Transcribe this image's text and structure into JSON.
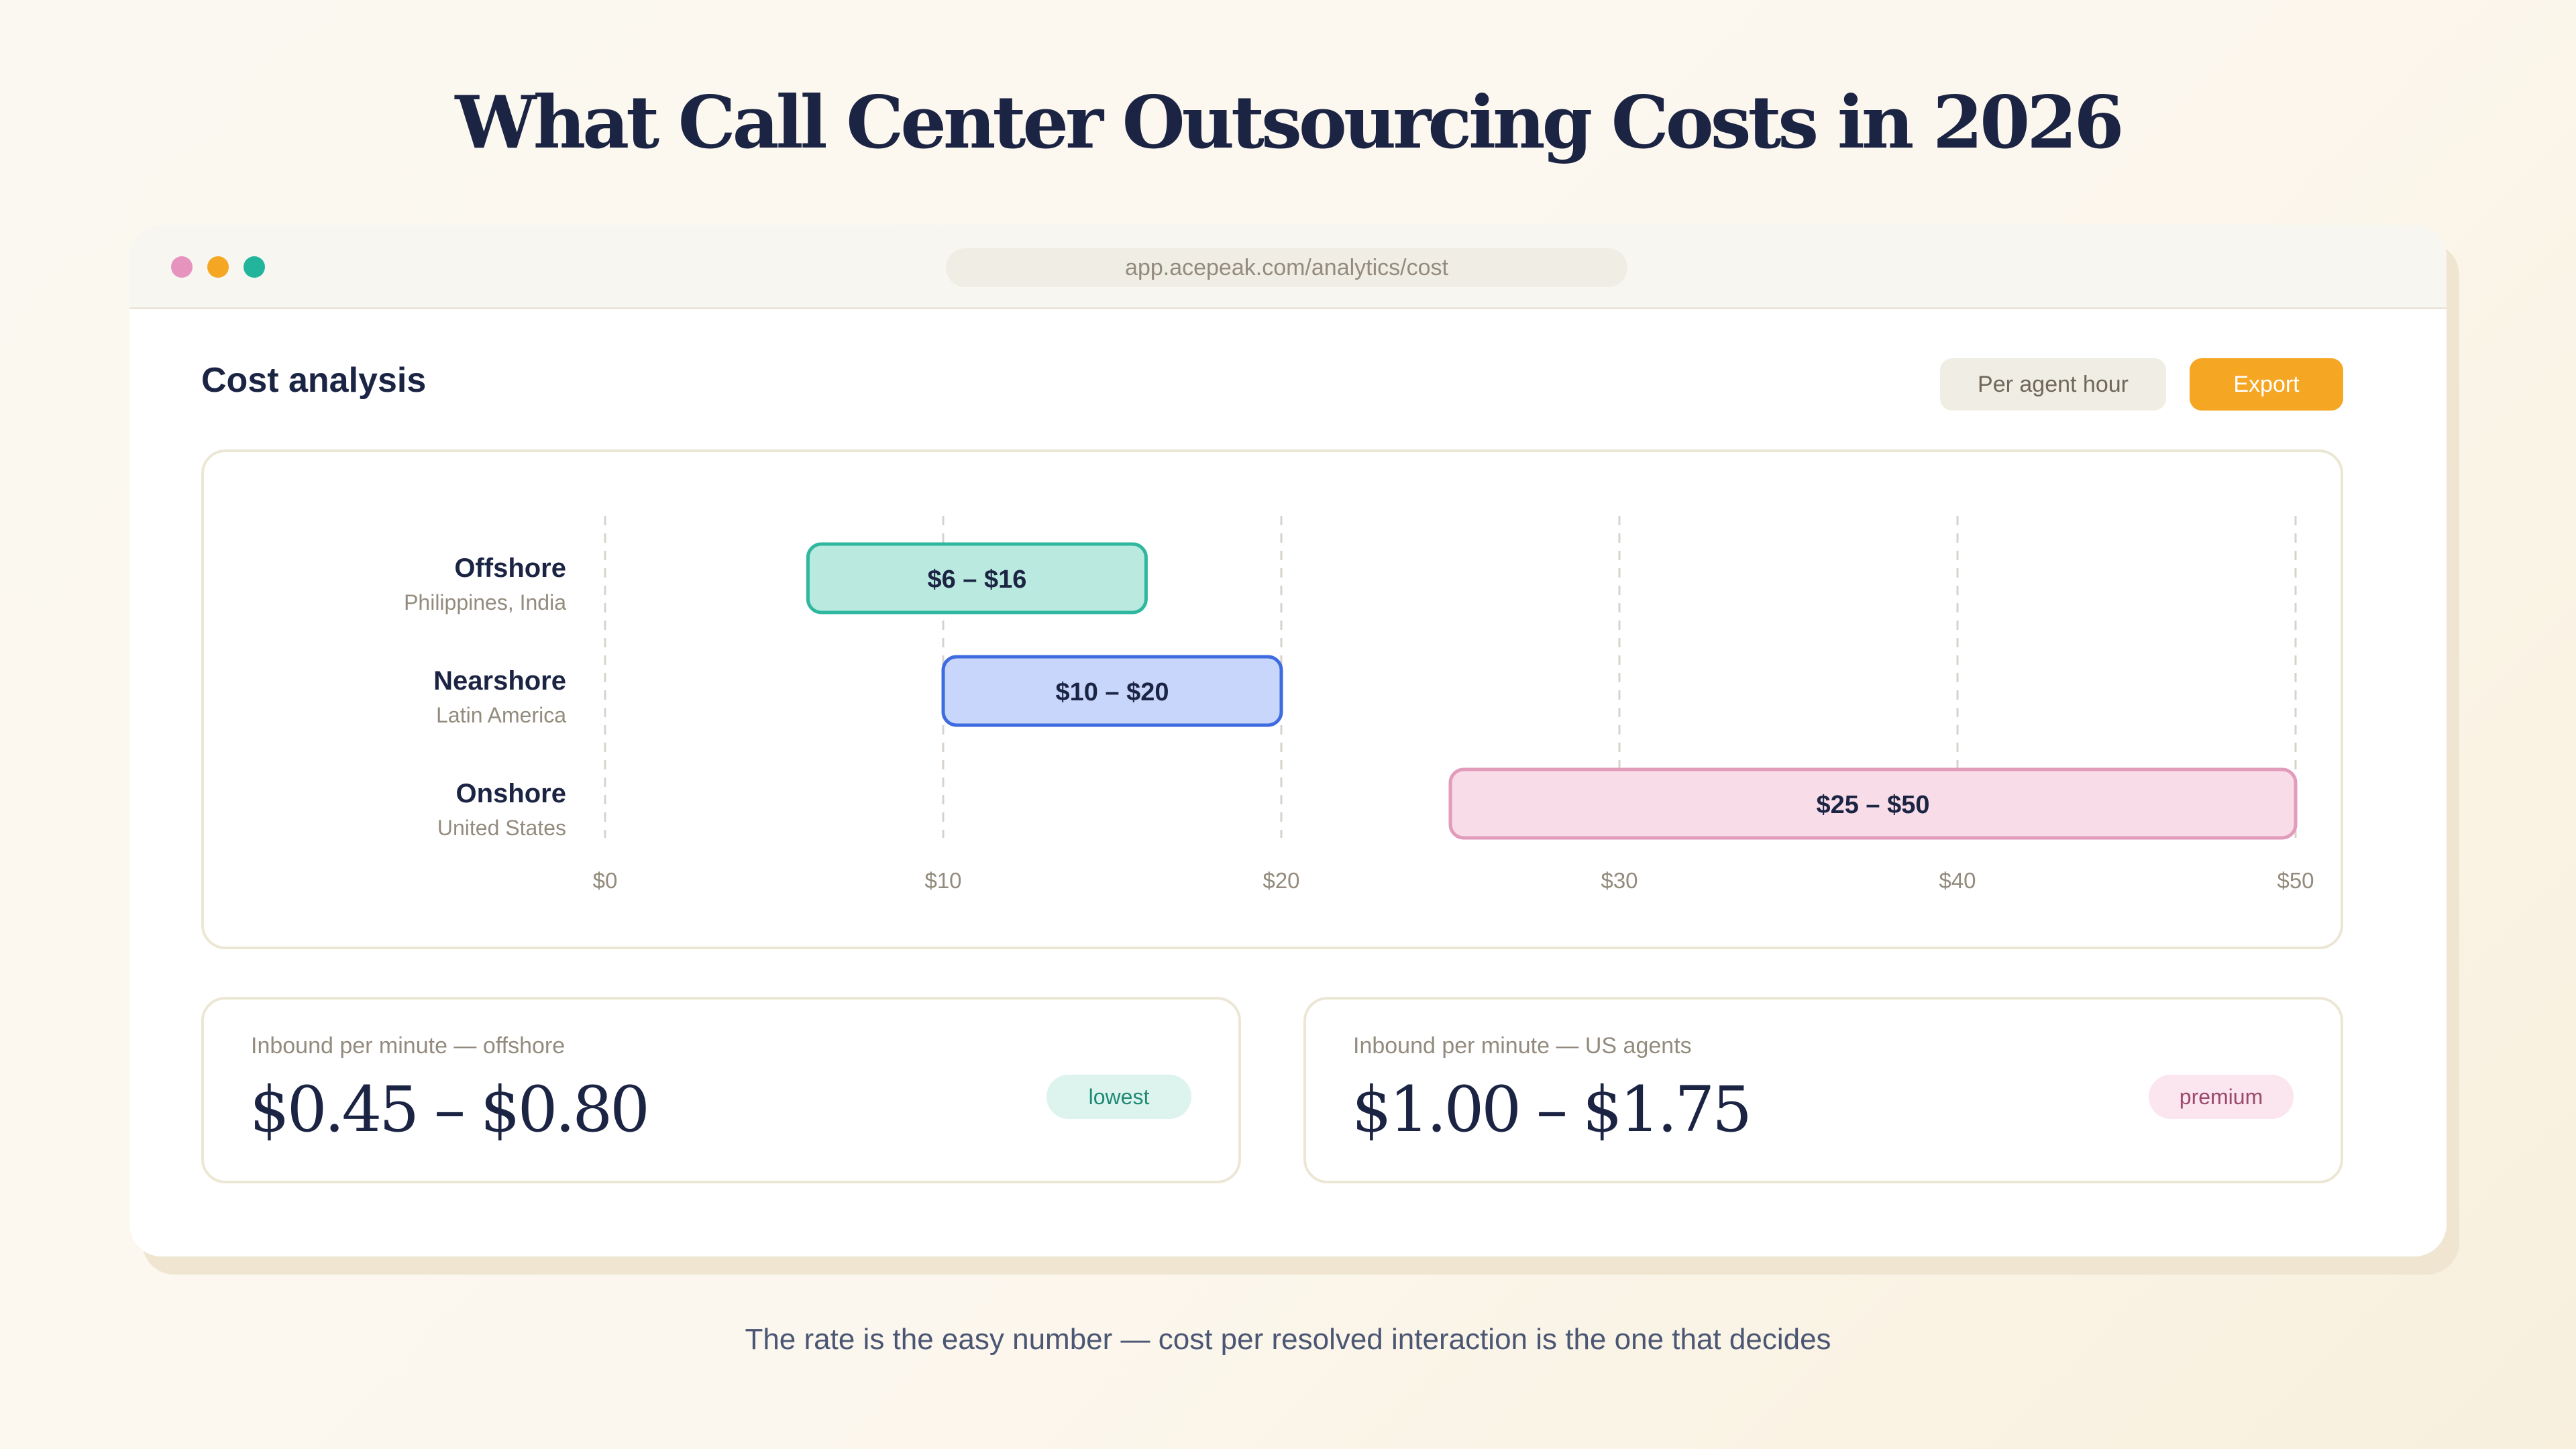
{
  "page_title": "What Call Center Outsourcing Costs in 2026",
  "footer_caption": "The rate is the easy number — cost per resolved interaction is the one that decides",
  "window": {
    "url": "app.acepeak.com/analytics/cost",
    "traffic_lights": [
      "#e694be",
      "#f5a623",
      "#22b59b"
    ]
  },
  "header": {
    "title": "Cost analysis",
    "unit_toggle_label": "Per agent hour",
    "export_label": "Export",
    "export_color": "#f5a623"
  },
  "chart_data": {
    "type": "bar",
    "orientation": "horizontal-range",
    "title": "",
    "xlabel": "",
    "ylabel": "",
    "xlim": [
      0,
      50
    ],
    "x_ticks": [
      "$0",
      "$10",
      "$20",
      "$30",
      "$40",
      "$50"
    ],
    "x_tick_values": [
      0,
      10,
      20,
      30,
      40,
      50
    ],
    "grid": true,
    "categories": [
      {
        "name": "Offshore",
        "region": "Philippines, India",
        "min": 6,
        "max": 16,
        "label": "$6 – $16",
        "fill": "#b9e9df",
        "stroke": "#2fb89f"
      },
      {
        "name": "Nearshore",
        "region": "Latin America",
        "min": 10,
        "max": 20,
        "label": "$10 – $20",
        "fill": "#c8d6fb",
        "stroke": "#3e6be0"
      },
      {
        "name": "Onshore",
        "region": "United States",
        "min": 25,
        "max": 50,
        "label": "$25 – $50",
        "fill": "#f8dde8",
        "stroke": "#e29bbb"
      }
    ]
  },
  "stats": [
    {
      "label": "Inbound per minute — offshore",
      "value": "$0.45 – $0.80",
      "badge": "lowest",
      "badge_bg": "#dcf3ee",
      "badge_fg": "#1f8a73"
    },
    {
      "label": "Inbound per minute — US agents",
      "value": "$1.00 – $1.75",
      "badge": "premium",
      "badge_bg": "#fbe5ee",
      "badge_fg": "#9b4a6c"
    }
  ]
}
